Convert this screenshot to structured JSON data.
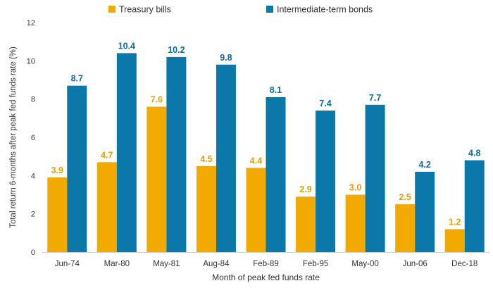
{
  "chart_data": {
    "type": "bar",
    "title": "",
    "xlabel": "Month of peak fed funds rate",
    "ylabel": "Total return 6-months after peak fed funds rate (%)",
    "categories": [
      "Jun-74",
      "Mar-80",
      "May-81",
      "Aug-84",
      "Feb-89",
      "Feb-95",
      "May-00",
      "Jun-06",
      "Dec-18"
    ],
    "series": [
      {
        "name": "Treasury bills",
        "color": "#F2A900",
        "label_color": "#E3A000",
        "values": [
          3.9,
          4.7,
          7.6,
          4.5,
          4.4,
          2.9,
          3.0,
          2.5,
          1.2
        ],
        "labels": [
          "3.9",
          "4.7",
          "7.6",
          "4.5",
          "4.4",
          "2.9",
          "3.0",
          "2.5",
          "1.2"
        ]
      },
      {
        "name": "Intermediate-term bonds",
        "color": "#0A78A8",
        "label_color": "#0A6E9E",
        "values": [
          8.7,
          10.4,
          10.2,
          9.8,
          8.1,
          7.4,
          7.7,
          4.2,
          4.8
        ],
        "labels": [
          "8.7",
          "10.4",
          "10.2",
          "9.8",
          "8.1",
          "7.4",
          "7.7",
          "4.2",
          "4.8"
        ]
      }
    ],
    "ylim": [
      0,
      12
    ],
    "yticks": [
      "0",
      "2",
      "4",
      "6",
      "8",
      "10",
      "12"
    ],
    "grid": false,
    "legend": "top"
  }
}
